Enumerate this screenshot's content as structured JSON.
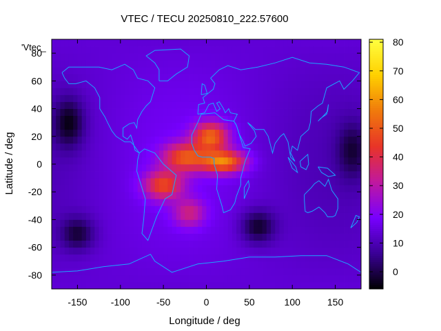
{
  "chart_data": {
    "type": "heatmap",
    "title": "VTEC / TECU 20250810_222.57600",
    "xlabel": "Longitude / deg",
    "ylabel": "Latitude / deg",
    "legend_label": "'Vtec_",
    "xlim": [
      -180,
      180
    ],
    "ylim": [
      -90,
      90
    ],
    "x_ticks": [
      -150,
      -100,
      -50,
      0,
      50,
      100,
      150
    ],
    "y_ticks": [
      -80,
      -60,
      -40,
      -20,
      0,
      20,
      40,
      60,
      80
    ],
    "colorbar": {
      "range": [
        -6,
        81
      ],
      "ticks": [
        0,
        10,
        20,
        30,
        40,
        50,
        60,
        70,
        80
      ],
      "palette": [
        "#000000",
        "#3a0096",
        "#7800ff",
        "#c0189f",
        "#e83428",
        "#f07a0c",
        "#ffd000",
        "#ffff40"
      ]
    },
    "grid": {
      "lon_step": 5,
      "lat_step": 5
    },
    "field": {
      "background": 14,
      "features": [
        {
          "name": "equatorial-anomaly-africa",
          "lon": 20,
          "lat": 2,
          "lon_width": 25,
          "lat_width": 8,
          "value": 45
        },
        {
          "name": "equatorial-anomaly-atlantic",
          "lon": -25,
          "lat": 5,
          "lon_width": 25,
          "lat_width": 10,
          "value": 36
        },
        {
          "name": "north-africa-crest",
          "lon": 5,
          "lat": 20,
          "lon_width": 20,
          "lat_width": 10,
          "value": 40
        },
        {
          "name": "south-american-crest",
          "lon": -50,
          "lat": -15,
          "lon_width": 22,
          "lat_width": 10,
          "value": 34
        },
        {
          "name": "south-atlantic-lobe",
          "lon": -20,
          "lat": -35,
          "lon_width": 18,
          "lat_width": 10,
          "value": 22
        },
        {
          "name": "low-pacific-west",
          "lon": -160,
          "lat": 30,
          "lon_width": 18,
          "lat_width": 18,
          "value": -12
        },
        {
          "name": "low-indian-ocean",
          "lon": 60,
          "lat": -45,
          "lon_width": 20,
          "lat_width": 12,
          "value": -12
        },
        {
          "name": "low-south-pacific",
          "lon": -150,
          "lat": -50,
          "lon_width": 20,
          "lat_width": 12,
          "value": -10
        },
        {
          "name": "low-asia-east",
          "lon": 170,
          "lat": 10,
          "lon_width": 18,
          "lat_width": 20,
          "value": -8
        }
      ]
    }
  }
}
